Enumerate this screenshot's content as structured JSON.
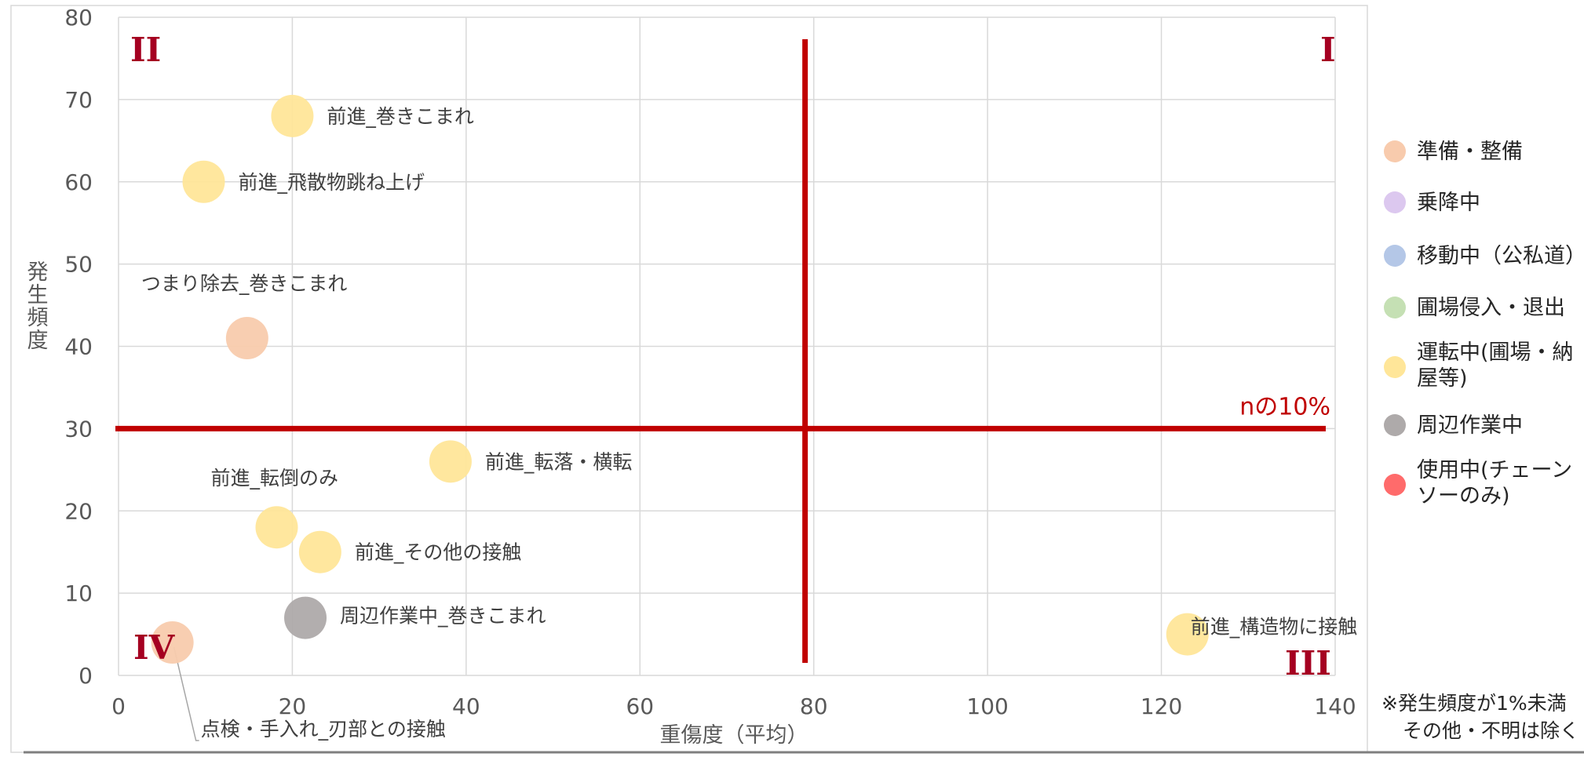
{
  "chart_data": {
    "type": "scatter",
    "xlabel": "重傷度（平均）",
    "ylabel": "発生頻度",
    "xlim": [
      0,
      140
    ],
    "ylim": [
      0,
      80
    ],
    "x_ticks": [
      "0",
      "20",
      "40",
      "60",
      "80",
      "100",
      "120",
      "140"
    ],
    "y_ticks": [
      "0",
      "10",
      "20",
      "30",
      "40",
      "50",
      "60",
      "70",
      "80"
    ],
    "grid": true,
    "legend_position": "right",
    "series": [
      {
        "name": "準備・整備",
        "color": "#f8cbad"
      },
      {
        "name": "乗降中",
        "color": "#dcc8ef"
      },
      {
        "name": "移動中（公私道）",
        "color": "#b4c7e7"
      },
      {
        "name": "圃場侵入・退出",
        "color": "#c5e0b4"
      },
      {
        "name": "運転中(圃場・納屋等)",
        "color": "#ffe699"
      },
      {
        "name": "周辺作業中",
        "color": "#aeaaaa"
      },
      {
        "name": "使用中(チェーンソーのみ)",
        "color": "#ff6b6b"
      }
    ],
    "points": [
      {
        "label": "前進_巻きこまれ",
        "x": 20,
        "y": 68,
        "series": 4
      },
      {
        "label": "前進_飛散物跳ね上げ",
        "x": 9.8,
        "y": 60,
        "series": 4
      },
      {
        "label": "つまり除去_巻きこまれ",
        "x": 14.8,
        "y": 41,
        "series": 0
      },
      {
        "label": "前進_転落・横転",
        "x": 38.2,
        "y": 26,
        "series": 4
      },
      {
        "label": "前進_転倒のみ",
        "x": 18.2,
        "y": 18,
        "series": 4
      },
      {
        "label": "前進_その他の接触",
        "x": 23.2,
        "y": 15,
        "series": 4
      },
      {
        "label": "周辺作業中_巻きこまれ",
        "x": 21.5,
        "y": 7,
        "series": 5
      },
      {
        "label": "点検・手入れ_刃部との接触",
        "x": 6.2,
        "y": 4,
        "series": 0
      },
      {
        "label": "前進_構造物に接触",
        "x": 123,
        "y": 5,
        "series": 4
      }
    ],
    "reference_lines": {
      "vertical_x": 79,
      "horizontal_y": 30,
      "horizontal_label": "nの10%"
    },
    "quadrants": {
      "I": "I",
      "II": "II",
      "III": "III",
      "IV": "IV"
    },
    "note": [
      "※発生頻度が1%未満",
      "その他・不明は除く"
    ]
  }
}
